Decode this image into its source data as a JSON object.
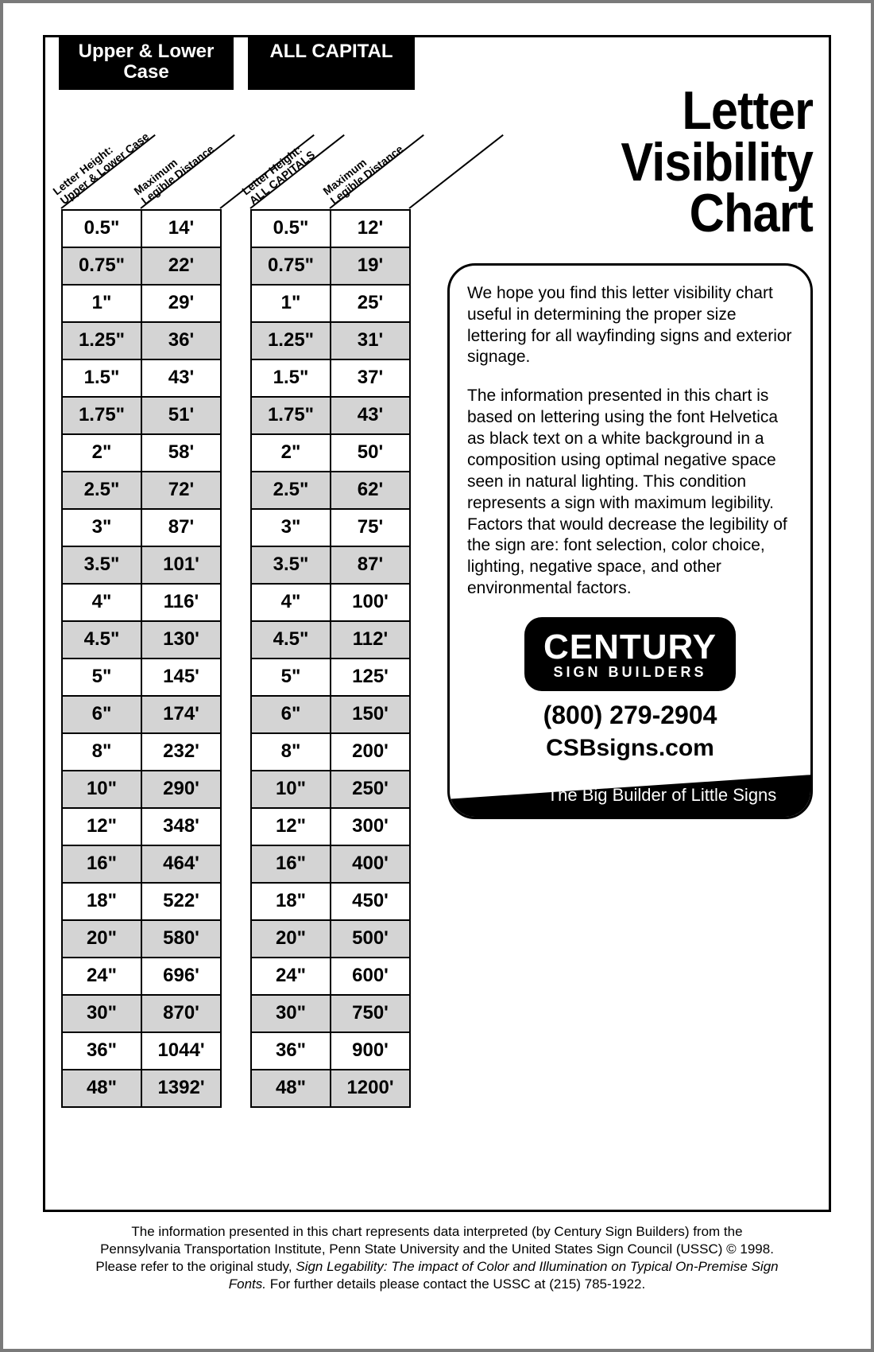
{
  "title_line1": "Letter",
  "title_line2": "Visibility",
  "title_line3": "Chart",
  "tables": {
    "upper_lower": {
      "header": "Upper & Lower\nCase",
      "col1_label_l1": "Letter Height:",
      "col1_label_l2": "Upper & Lower Case",
      "col2_label_l1": "Maximum",
      "col2_label_l2": "Legible Distance",
      "rows": [
        {
          "h": "0.5\"",
          "d": "14'"
        },
        {
          "h": "0.75\"",
          "d": "22'"
        },
        {
          "h": "1\"",
          "d": "29'"
        },
        {
          "h": "1.25\"",
          "d": "36'"
        },
        {
          "h": "1.5\"",
          "d": "43'"
        },
        {
          "h": "1.75\"",
          "d": "51'"
        },
        {
          "h": "2\"",
          "d": "58'"
        },
        {
          "h": "2.5\"",
          "d": "72'"
        },
        {
          "h": "3\"",
          "d": "87'"
        },
        {
          "h": "3.5\"",
          "d": "101'"
        },
        {
          "h": "4\"",
          "d": "116'"
        },
        {
          "h": "4.5\"",
          "d": "130'"
        },
        {
          "h": "5\"",
          "d": "145'"
        },
        {
          "h": "6\"",
          "d": "174'"
        },
        {
          "h": "8\"",
          "d": "232'"
        },
        {
          "h": "10\"",
          "d": "290'"
        },
        {
          "h": "12\"",
          "d": "348'"
        },
        {
          "h": "16\"",
          "d": "464'"
        },
        {
          "h": "18\"",
          "d": "522'"
        },
        {
          "h": "20\"",
          "d": "580'"
        },
        {
          "h": "24\"",
          "d": "696'"
        },
        {
          "h": "30\"",
          "d": "870'"
        },
        {
          "h": "36\"",
          "d": "1044'"
        },
        {
          "h": "48\"",
          "d": "1392'"
        }
      ]
    },
    "all_caps": {
      "header": "ALL CAPITAL",
      "col1_label_l1": "Letter Height:",
      "col1_label_l2": "ALL CAPITALS",
      "col2_label_l1": "Maximum",
      "col2_label_l2": "Legible Distance",
      "rows": [
        {
          "h": "0.5\"",
          "d": "12'"
        },
        {
          "h": "0.75\"",
          "d": "19'"
        },
        {
          "h": "1\"",
          "d": "25'"
        },
        {
          "h": "1.25\"",
          "d": "31'"
        },
        {
          "h": "1.5\"",
          "d": "37'"
        },
        {
          "h": "1.75\"",
          "d": "43'"
        },
        {
          "h": "2\"",
          "d": "50'"
        },
        {
          "h": "2.5\"",
          "d": "62'"
        },
        {
          "h": "3\"",
          "d": "75'"
        },
        {
          "h": "3.5\"",
          "d": "87'"
        },
        {
          "h": "4\"",
          "d": "100'"
        },
        {
          "h": "4.5\"",
          "d": "112'"
        },
        {
          "h": "5\"",
          "d": "125'"
        },
        {
          "h": "6\"",
          "d": "150'"
        },
        {
          "h": "8\"",
          "d": "200'"
        },
        {
          "h": "10\"",
          "d": "250'"
        },
        {
          "h": "12\"",
          "d": "300'"
        },
        {
          "h": "16\"",
          "d": "400'"
        },
        {
          "h": "18\"",
          "d": "450'"
        },
        {
          "h": "20\"",
          "d": "500'"
        },
        {
          "h": "24\"",
          "d": "600'"
        },
        {
          "h": "30\"",
          "d": "750'"
        },
        {
          "h": "36\"",
          "d": "900'"
        },
        {
          "h": "48\"",
          "d": "1200'"
        }
      ]
    },
    "shade_color": "#d4d4d4",
    "border_color": "#000000",
    "cell_font_size": 24
  },
  "info": {
    "p1": "We hope you find this letter visibility chart useful in determining the proper size lettering for all wayfinding signs and exterior signage.",
    "p2": "The information presented in this chart is based on lettering using the font Helvetica as black text on a white background in a composition using optimal negative space seen in natural lighting.  This condition represents a sign with maximum legibility.  Factors that would decrease the legibility of the sign are: font selection, color choice, lighting, negative space, and other environmental factors."
  },
  "logo": {
    "main": "CENTURY",
    "sub": "SIGN BUILDERS",
    "phone": "(800) 279-2904",
    "website": "CSBsigns.com",
    "tagline": "The Big Builder of Little Signs"
  },
  "footer": {
    "l1": "The information presented in this chart represents data interpreted (by Century Sign Builders) from the",
    "l2": "Pennsylvania Transportation Institute, Penn State University and the United States Sign Council (USSC) © 1998.",
    "l3a": "Please refer to the original study, ",
    "l3b": "Sign Legability: The impact of Color and Illumination on Typical On-Premise Sign",
    "l4a": "Fonts.",
    "l4b": "  For further details please contact the USSC at (215) 785-1922."
  },
  "colors": {
    "black": "#000000",
    "white": "#ffffff",
    "page_border": "#7a7a7a"
  }
}
